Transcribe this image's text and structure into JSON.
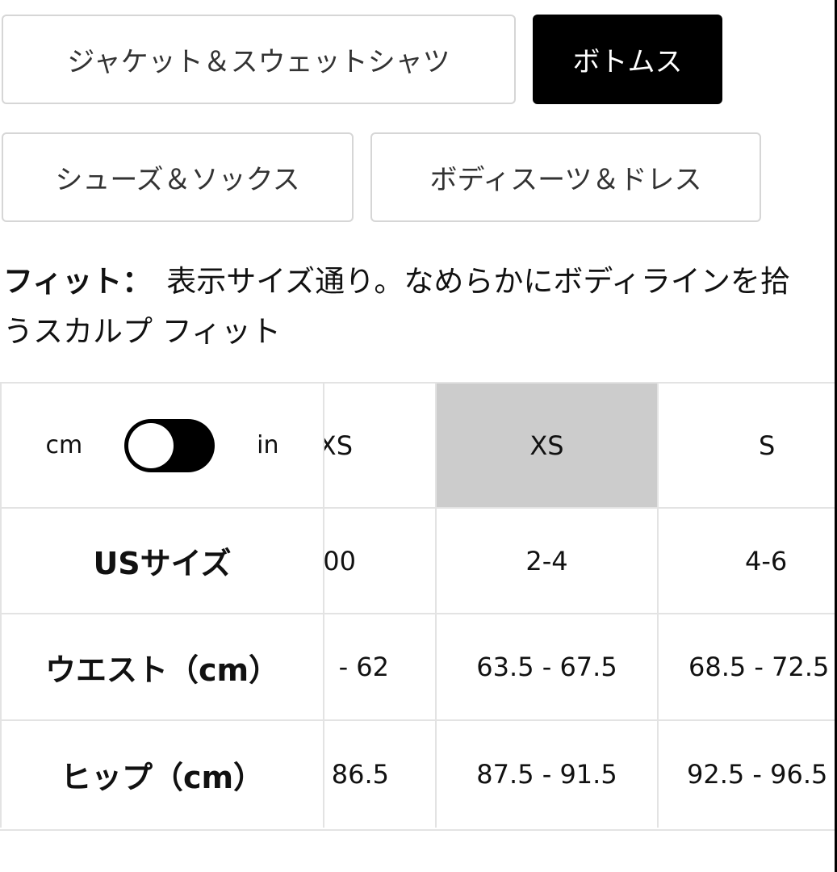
{
  "categories": [
    {
      "label": "ジャケット＆スウェットシャツ",
      "active": false
    },
    {
      "label": "ボトムス",
      "active": true
    },
    {
      "label": "シューズ＆ソックス",
      "active": false
    },
    {
      "label": "ボディスーツ＆ドレス",
      "active": false
    }
  ],
  "fit": {
    "label": "フィット：",
    "text": "表示サイズ通り。なめらかにボディラインを拾うスカルプ フィット"
  },
  "unit_toggle": {
    "left": "cm",
    "right": "in",
    "selected": "cm"
  },
  "table": {
    "highlight_color": "#cccccc",
    "headers": [
      "XXS",
      "XS",
      "S"
    ],
    "highlighted": "XS",
    "rows": [
      {
        "label": "USサイズ",
        "values": [
          "00",
          "2-4",
          "4-6"
        ]
      },
      {
        "label": "ウエスト（cm）",
        "values": [
          "- 62",
          "63.5 - 67.5",
          "68.5 - 72.5"
        ]
      },
      {
        "label": "ヒップ（cm）",
        "values": [
          "86.5",
          "87.5 - 91.5",
          "92.5 - 96.5"
        ]
      }
    ]
  }
}
